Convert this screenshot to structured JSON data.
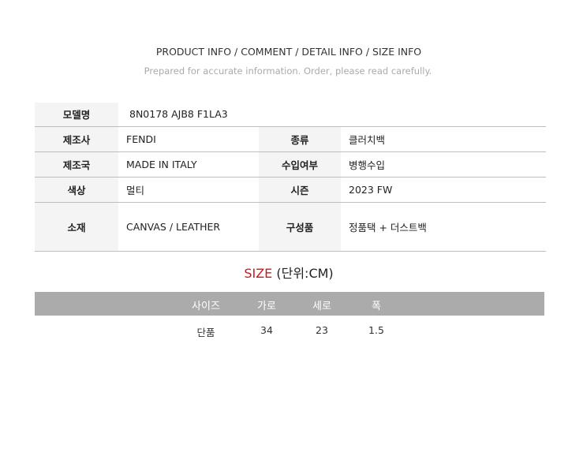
{
  "header": {
    "title": "PRODUCT INFO / COMMENT / DETAIL INFO / SIZE INFO",
    "subtitle": "Prepared for accurate information. Order, please read carefully."
  },
  "info": {
    "model": {
      "label": "모델명",
      "value": "8N0178 AJB8 F1LA3"
    },
    "rows": [
      [
        {
          "label": "제조사",
          "value": "FENDI"
        },
        {
          "label": "종류",
          "value": "클러치백"
        }
      ],
      [
        {
          "label": "제조국",
          "value": "MADE IN ITALY"
        },
        {
          "label": "수입여부",
          "value": "병행수입"
        }
      ],
      [
        {
          "label": "색상",
          "value": "멀티"
        },
        {
          "label": "시즌",
          "value": "2023 FW"
        }
      ],
      [
        {
          "label": "소재",
          "value": "CANVAS / LEATHER"
        },
        {
          "label": "구성품",
          "value": "정품택 + 더스트백"
        }
      ]
    ]
  },
  "size": {
    "title": "SIZE",
    "unit": "(단위:CM)",
    "accent": "#d0161c",
    "headers": [
      "사이즈",
      "가로",
      "세로",
      "폭"
    ],
    "rows": [
      [
        "단품",
        "34",
        "23",
        "1.5"
      ]
    ]
  }
}
